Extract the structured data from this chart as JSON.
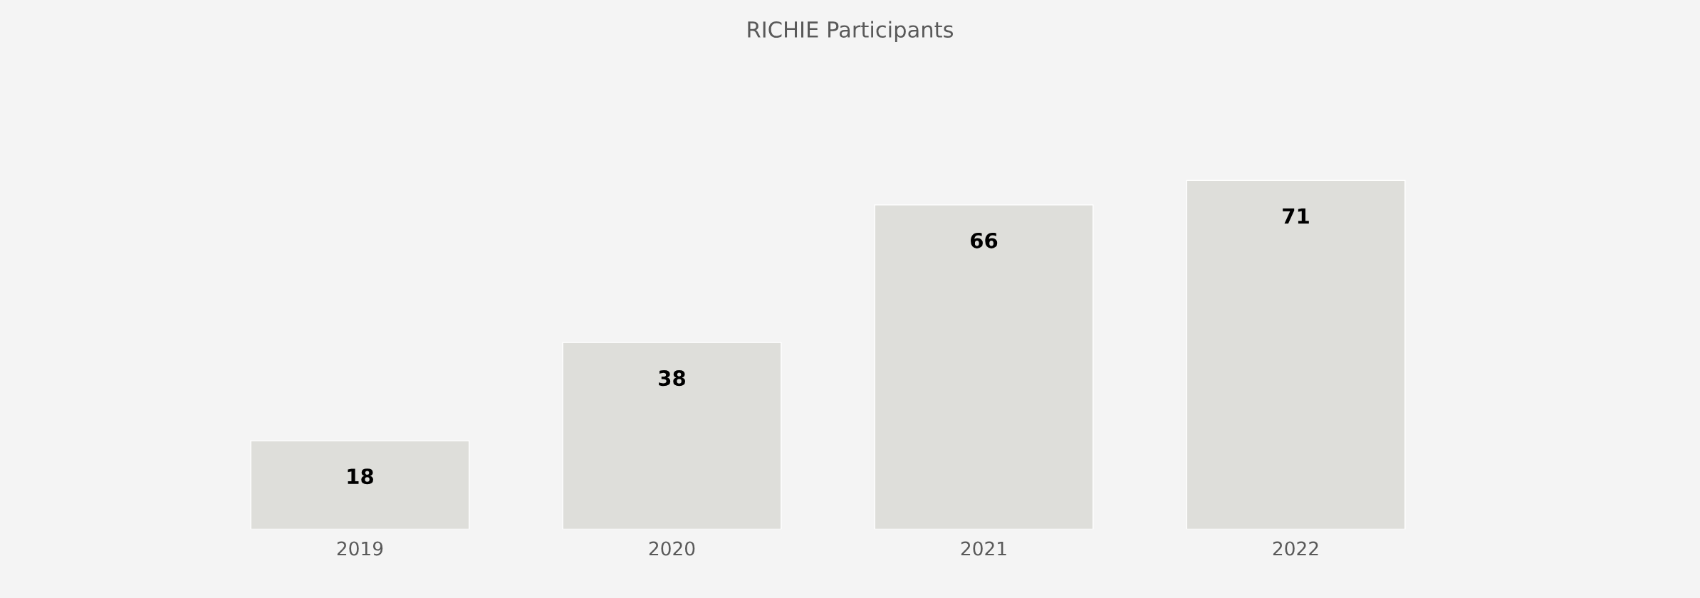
{
  "chart_data": {
    "type": "bar",
    "title": "RICHIE Participants",
    "categories": [
      "2019",
      "2020",
      "2021",
      "2022"
    ],
    "values": [
      18,
      38,
      66,
      71
    ],
    "color": "#dededa",
    "data_labels": true,
    "grid": false,
    "legend": false
  }
}
